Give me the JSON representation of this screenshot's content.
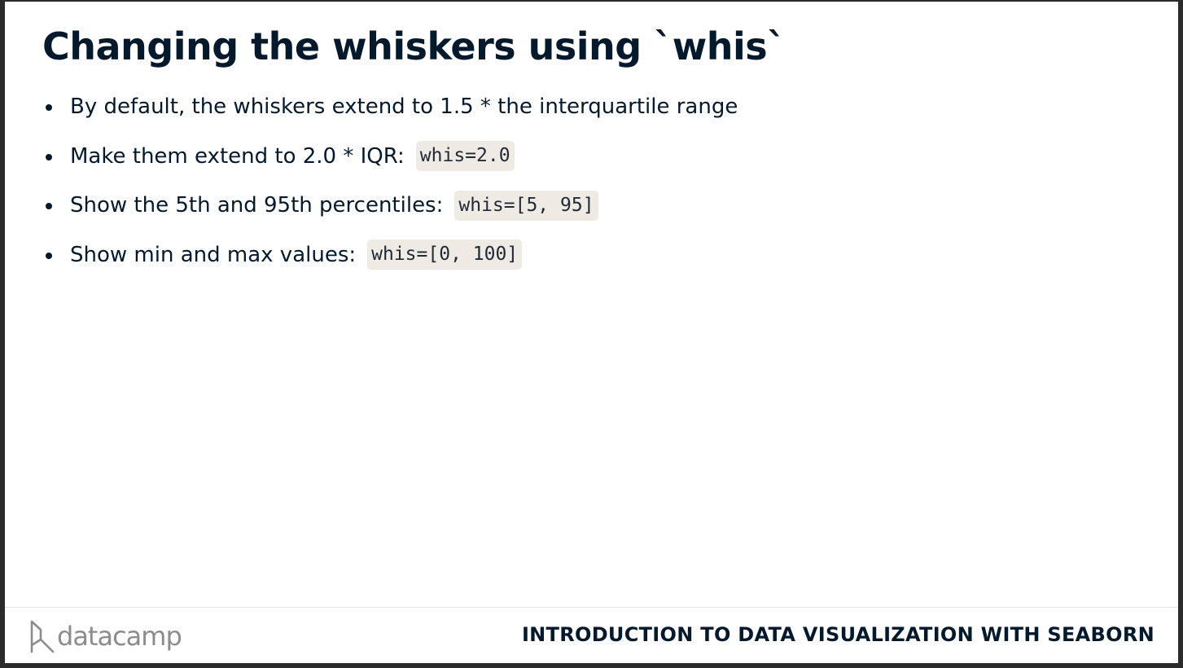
{
  "slide": {
    "title": "Changing the whiskers using `whis`",
    "bullets": [
      {
        "text": "By default, the whiskers extend to 1.5 * the interquartile range",
        "code": ""
      },
      {
        "text": "Make them extend to 2.0 * IQR:",
        "code": "whis=2.0"
      },
      {
        "text": "Show the 5th and 95th percentiles:",
        "code": "whis=[5, 95]"
      },
      {
        "text": "Show min and max values:",
        "code": "whis=[0, 100]"
      }
    ]
  },
  "footer": {
    "logo_text": "datacamp",
    "logo_icon": "datacamp-logo-icon",
    "course_title": "INTRODUCTION TO DATA VISUALIZATION WITH SEABORN"
  },
  "colors": {
    "text": "#05192d",
    "code_background": "#efebe4",
    "logo_gray": "#8c8c8c"
  }
}
